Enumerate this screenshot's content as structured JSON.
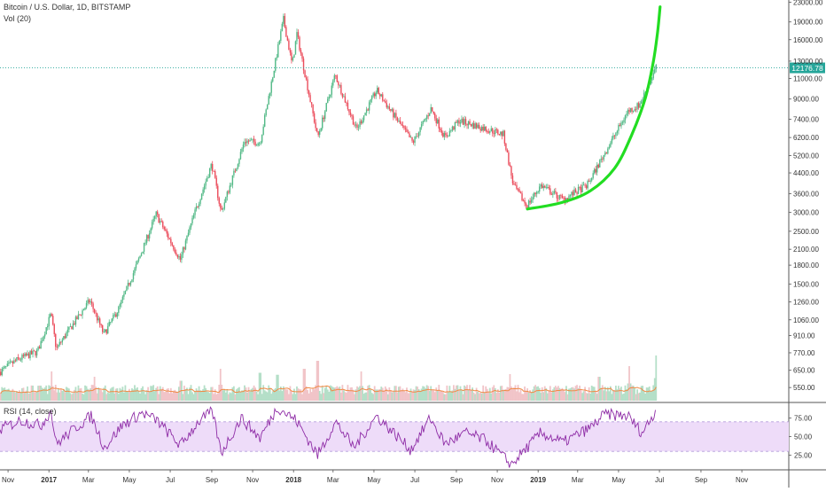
{
  "header": {
    "title": "Bitcoin / U.S. Dollar, 1D, BITSTAMP",
    "volume_label": "Vol (20)",
    "rsi_label": "RSI (14, close)"
  },
  "colors": {
    "up": "#53b987",
    "down": "#eb4d5c",
    "volume_up": "#b5dfc8",
    "volume_down": "#f1c4c8",
    "volume_ma": "#f08a45",
    "rsi_line": "#8e2ca6",
    "rsi_band": "#eedcf9",
    "rsi_band_border": "#b39ddb",
    "curve": "#22dd22",
    "price_line": "#26a69a",
    "price_badge": "#26a69a",
    "axis_text": "#333333",
    "grid": "#eeeeee"
  },
  "chart_data": [
    {
      "type": "candlestick",
      "title": "Bitcoin / U.S. Dollar, 1D, BITSTAMP",
      "y_scale": "log",
      "ylim": [
        480,
        23500
      ],
      "xlim": [
        "2016-10-20",
        "2020-01-10"
      ],
      "x_tick_labels": [
        "Nov",
        "2017",
        "Mar",
        "May",
        "Jul",
        "Sep",
        "Nov",
        "2018",
        "Mar",
        "May",
        "Jul",
        "Sep",
        "Nov",
        "2019",
        "Mar",
        "May",
        "Jul",
        "Sep",
        "Nov"
      ],
      "x_ticks": [
        "2016-11-01",
        "2017-01-01",
        "2017-03-01",
        "2017-05-01",
        "2017-07-01",
        "2017-09-01",
        "2017-11-01",
        "2018-01-01",
        "2018-03-01",
        "2018-05-01",
        "2018-07-01",
        "2018-09-01",
        "2018-11-01",
        "2019-01-01",
        "2019-03-01",
        "2019-05-01",
        "2019-07-01",
        "2019-09-01",
        "2019-11-01"
      ],
      "y_tick_labels": [
        "23000.00",
        "19000.00",
        "16000.00",
        "13000.00",
        "11000.00",
        "9000.00",
        "7400.00",
        "6200.00",
        "5200.00",
        "4400.00",
        "3600.00",
        "3000.00",
        "2500.00",
        "2100.00",
        "1800.00",
        "1500.00",
        "1260.00",
        "1060.00",
        "910.00",
        "770.00",
        "650.00",
        "550.00"
      ],
      "y_ticks": [
        23000,
        19000,
        16000,
        13000,
        11000,
        9000,
        7400,
        6200,
        5200,
        4400,
        3600,
        3000,
        2500,
        2100,
        1800,
        1500,
        1260,
        1060,
        910,
        770,
        650,
        550
      ],
      "grid": false,
      "last_price": 12176.78,
      "last_price_label": "12176.78",
      "price_path": [
        {
          "date": "2016-10-20",
          "close": 640
        },
        {
          "date": "2016-11-15",
          "close": 720
        },
        {
          "date": "2016-12-15",
          "close": 780
        },
        {
          "date": "2017-01-04",
          "close": 1120
        },
        {
          "date": "2017-01-12",
          "close": 800
        },
        {
          "date": "2017-02-01",
          "close": 970
        },
        {
          "date": "2017-03-03",
          "close": 1280
        },
        {
          "date": "2017-03-24",
          "close": 920
        },
        {
          "date": "2017-04-15",
          "close": 1180
        },
        {
          "date": "2017-05-10",
          "close": 1750
        },
        {
          "date": "2017-06-10",
          "close": 2950
        },
        {
          "date": "2017-07-16",
          "close": 1900
        },
        {
          "date": "2017-08-05",
          "close": 2900
        },
        {
          "date": "2017-09-01",
          "close": 4800
        },
        {
          "date": "2017-09-15",
          "close": 3000
        },
        {
          "date": "2017-10-20",
          "close": 6000
        },
        {
          "date": "2017-11-12",
          "close": 5900
        },
        {
          "date": "2017-12-17",
          "close": 19500
        },
        {
          "date": "2017-12-30",
          "close": 12500
        },
        {
          "date": "2018-01-06",
          "close": 17000
        },
        {
          "date": "2018-02-06",
          "close": 6200
        },
        {
          "date": "2018-03-04",
          "close": 11400
        },
        {
          "date": "2018-04-05",
          "close": 6700
        },
        {
          "date": "2018-05-05",
          "close": 9800
        },
        {
          "date": "2018-06-28",
          "close": 5900
        },
        {
          "date": "2018-07-25",
          "close": 8200
        },
        {
          "date": "2018-08-15",
          "close": 6200
        },
        {
          "date": "2018-09-05",
          "close": 7300
        },
        {
          "date": "2018-11-10",
          "close": 6400
        },
        {
          "date": "2018-11-25",
          "close": 3900
        },
        {
          "date": "2018-12-15",
          "close": 3200
        },
        {
          "date": "2019-01-05",
          "close": 3900
        },
        {
          "date": "2019-02-07",
          "close": 3400
        },
        {
          "date": "2019-03-15",
          "close": 3900
        },
        {
          "date": "2019-04-05",
          "close": 5000
        },
        {
          "date": "2019-05-15",
          "close": 8000
        },
        {
          "date": "2019-06-01",
          "close": 8500
        },
        {
          "date": "2019-06-26",
          "close": 12200
        }
      ],
      "volume": {
        "label": "Vol (20)",
        "spikes": [
          {
            "date": "2017-01-05",
            "value": 0.55
          },
          {
            "date": "2017-03-10",
            "value": 0.45
          },
          {
            "date": "2017-07-17",
            "value": 0.5
          },
          {
            "date": "2017-09-14",
            "value": 0.6
          },
          {
            "date": "2017-11-12",
            "value": 0.7
          },
          {
            "date": "2017-12-08",
            "value": 0.65
          },
          {
            "date": "2018-01-17",
            "value": 0.8
          },
          {
            "date": "2018-02-06",
            "value": 1.0
          },
          {
            "date": "2018-04-12",
            "value": 0.55
          },
          {
            "date": "2018-11-20",
            "value": 0.5
          },
          {
            "date": "2019-04-02",
            "value": 0.6
          },
          {
            "date": "2019-05-17",
            "value": 0.65
          },
          {
            "date": "2019-06-26",
            "value": 0.85
          }
        ]
      },
      "curve_overlay": {
        "type": "parabolic",
        "color": "#22dd22",
        "points": [
          {
            "date": "2018-12-16",
            "price": 3100
          },
          {
            "date": "2019-02-05",
            "price": 3300
          },
          {
            "date": "2019-03-20",
            "price": 3700
          },
          {
            "date": "2019-04-25",
            "price": 4600
          },
          {
            "date": "2019-05-20",
            "price": 6300
          },
          {
            "date": "2019-06-10",
            "price": 9100
          },
          {
            "date": "2019-06-22",
            "price": 13000
          },
          {
            "date": "2019-06-28",
            "price": 17000
          },
          {
            "date": "2019-07-02",
            "price": 22000
          }
        ]
      }
    },
    {
      "type": "line",
      "title": "RSI (14, close)",
      "ylim": [
        5,
        95
      ],
      "y_tick_labels": [
        "75.00",
        "50.00",
        "25.00"
      ],
      "y_ticks": [
        75,
        50,
        25
      ],
      "band": [
        30,
        70
      ],
      "x": [
        "2016-10-20",
        "2016-11-20",
        "2016-12-20",
        "2017-01-04",
        "2017-01-12",
        "2017-02-10",
        "2017-03-05",
        "2017-03-25",
        "2017-04-20",
        "2017-05-20",
        "2017-06-11",
        "2017-07-16",
        "2017-08-12",
        "2017-09-02",
        "2017-09-15",
        "2017-10-15",
        "2017-11-12",
        "2017-12-08",
        "2018-01-05",
        "2018-02-06",
        "2018-03-05",
        "2018-04-01",
        "2018-05-05",
        "2018-06-25",
        "2018-07-24",
        "2018-08-15",
        "2018-09-15",
        "2018-10-15",
        "2018-11-22",
        "2018-12-10",
        "2019-01-05",
        "2019-02-07",
        "2019-03-20",
        "2019-04-10",
        "2019-05-15",
        "2019-06-05",
        "2019-06-26"
      ],
      "values": [
        60,
        72,
        65,
        85,
        40,
        62,
        78,
        35,
        65,
        82,
        72,
        38,
        70,
        84,
        28,
        75,
        48,
        90,
        72,
        25,
        70,
        35,
        78,
        32,
        75,
        40,
        55,
        45,
        12,
        30,
        55,
        42,
        62,
        80,
        78,
        55,
        85
      ]
    }
  ]
}
